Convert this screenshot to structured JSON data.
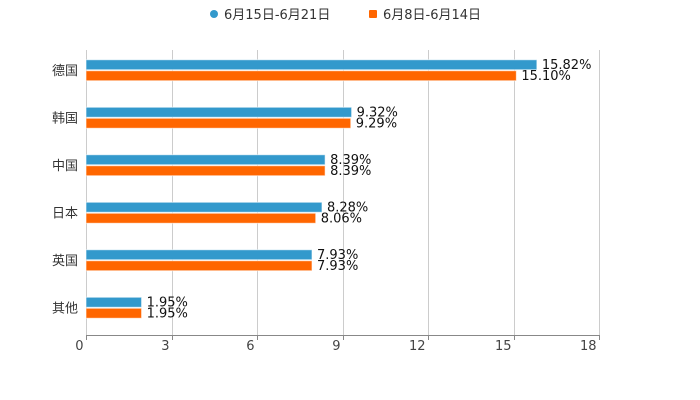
{
  "chart_data": {
    "type": "bar",
    "orientation": "horizontal",
    "title": "",
    "xlabel": "",
    "ylabel": "",
    "categories": [
      "德国",
      "韩国",
      "中国",
      "日本",
      "英国",
      "其他"
    ],
    "series": [
      {
        "name": "6月15日-6月21日",
        "color": "#3399cc",
        "values": [
          15.82,
          9.32,
          8.39,
          8.28,
          7.93,
          1.95
        ],
        "labels": [
          "15.82%",
          "9.32%",
          "8.39%",
          "8.28%",
          "7.93%",
          "1.95%"
        ]
      },
      {
        "name": "6月8日-6月14日",
        "color": "#ff6600",
        "values": [
          15.1,
          9.29,
          8.39,
          8.06,
          7.93,
          1.95
        ],
        "labels": [
          "15.10%",
          "9.29%",
          "8.39%",
          "8.06%",
          "7.93%",
          "1.95%"
        ]
      }
    ],
    "xlim": [
      0,
      18
    ],
    "xticks": [
      "0",
      "3",
      "6",
      "9",
      "12",
      "15",
      "18"
    ],
    "grid": true,
    "legend_position": "top"
  },
  "legend": {
    "items": [
      {
        "label": "6月15日-6月21日",
        "color": "#3399cc",
        "marker": "circle"
      },
      {
        "label": "6月8日-6月14日",
        "color": "#ff6600",
        "marker": "square"
      }
    ]
  }
}
